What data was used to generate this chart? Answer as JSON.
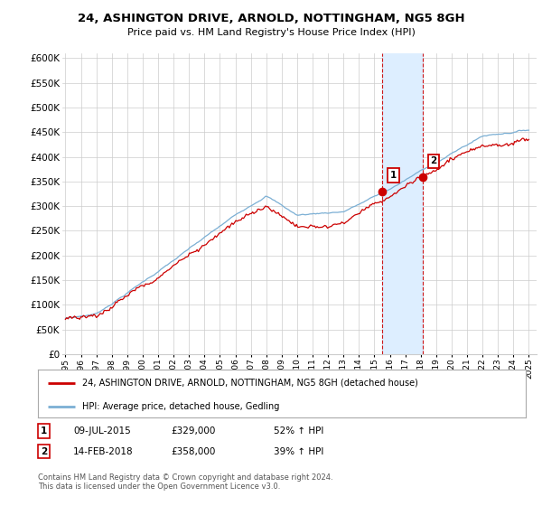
{
  "title": "24, ASHINGTON DRIVE, ARNOLD, NOTTINGHAM, NG5 8GH",
  "subtitle": "Price paid vs. HM Land Registry's House Price Index (HPI)",
  "ylabel_ticks": [
    "£0",
    "£50K",
    "£100K",
    "£150K",
    "£200K",
    "£250K",
    "£300K",
    "£350K",
    "£400K",
    "£450K",
    "£500K",
    "£550K",
    "£600K"
  ],
  "ytick_values": [
    0,
    50000,
    100000,
    150000,
    200000,
    250000,
    300000,
    350000,
    400000,
    450000,
    500000,
    550000,
    600000
  ],
  "ylim": [
    0,
    610000
  ],
  "xlim_start": 1994.8,
  "xlim_end": 2025.5,
  "sale1_x": 2015.52,
  "sale1_y": 329000,
  "sale1_label": "1",
  "sale1_date": "09-JUL-2015",
  "sale1_price": "£329,000",
  "sale1_hpi": "52% ↑ HPI",
  "sale2_x": 2018.12,
  "sale2_y": 358000,
  "sale2_label": "2",
  "sale2_date": "14-FEB-2018",
  "sale2_price": "£358,000",
  "sale2_hpi": "39% ↑ HPI",
  "red_color": "#cc0000",
  "blue_color": "#7bafd4",
  "shade_color": "#ddeeff",
  "legend_line1": "24, ASHINGTON DRIVE, ARNOLD, NOTTINGHAM, NG5 8GH (detached house)",
  "legend_line2": "HPI: Average price, detached house, Gedling",
  "footer": "Contains HM Land Registry data © Crown copyright and database right 2024.\nThis data is licensed under the Open Government Licence v3.0.",
  "background_color": "#ffffff",
  "grid_color": "#cccccc"
}
